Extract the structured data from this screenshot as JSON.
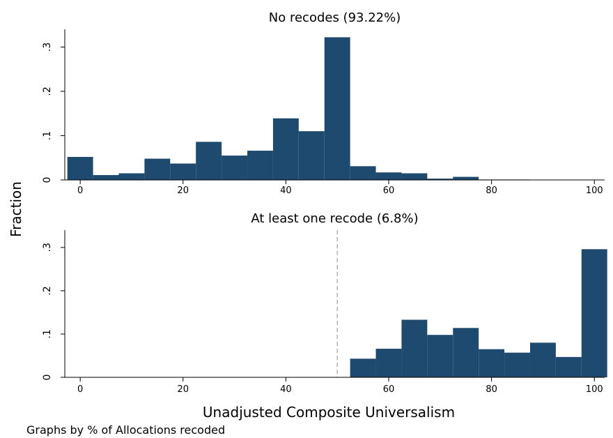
{
  "chart_data": {
    "type": "bar",
    "ylabel": "Fraction",
    "xlabel": "Unadjusted Composite Universalism",
    "note": "Graphs by % of Allocations recoded",
    "bar_color": "#1f4a70",
    "xlim": [
      -3,
      102
    ],
    "ylim": [
      0,
      0.34
    ],
    "xticks": [
      0,
      20,
      40,
      60,
      80,
      100
    ],
    "yticks": [
      {
        "value": 0,
        "label": "0"
      },
      {
        "value": 0.1,
        "label": ".1"
      },
      {
        "value": 0.2,
        "label": ".2"
      },
      {
        "value": 0.3,
        "label": ".3"
      }
    ],
    "panels": [
      {
        "title": "No recodes (93.22%)",
        "bins": [
          {
            "x0": -2.5,
            "x1": 2.5,
            "value": 0.052
          },
          {
            "x0": 2.5,
            "x1": 7.5,
            "value": 0.011
          },
          {
            "x0": 7.5,
            "x1": 12.5,
            "value": 0.015
          },
          {
            "x0": 12.5,
            "x1": 17.5,
            "value": 0.048
          },
          {
            "x0": 17.5,
            "x1": 22.5,
            "value": 0.037
          },
          {
            "x0": 22.5,
            "x1": 27.5,
            "value": 0.086
          },
          {
            "x0": 27.5,
            "x1": 32.5,
            "value": 0.055
          },
          {
            "x0": 32.5,
            "x1": 37.5,
            "value": 0.066
          },
          {
            "x0": 37.5,
            "x1": 42.5,
            "value": 0.139
          },
          {
            "x0": 42.5,
            "x1": 47.5,
            "value": 0.11
          },
          {
            "x0": 47.5,
            "x1": 52.5,
            "value": 0.322
          },
          {
            "x0": 52.5,
            "x1": 57.5,
            "value": 0.031
          },
          {
            "x0": 57.5,
            "x1": 62.5,
            "value": 0.017
          },
          {
            "x0": 62.5,
            "x1": 67.5,
            "value": 0.015
          },
          {
            "x0": 67.5,
            "x1": 72.5,
            "value": 0.003
          },
          {
            "x0": 72.5,
            "x1": 77.5,
            "value": 0.007
          },
          {
            "x0": 77.5,
            "x1": 82.5,
            "value": 0.001
          },
          {
            "x0": 82.5,
            "x1": 87.5,
            "value": 0.001
          }
        ]
      },
      {
        "title": "At least one recode (6.8%)",
        "reference_line_x": 50,
        "bins": [
          {
            "x0": 52.5,
            "x1": 57.5,
            "value": 0.043
          },
          {
            "x0": 57.5,
            "x1": 62.5,
            "value": 0.066
          },
          {
            "x0": 62.5,
            "x1": 67.5,
            "value": 0.133
          },
          {
            "x0": 67.5,
            "x1": 72.5,
            "value": 0.098
          },
          {
            "x0": 72.5,
            "x1": 77.5,
            "value": 0.114
          },
          {
            "x0": 77.5,
            "x1": 82.5,
            "value": 0.065
          },
          {
            "x0": 82.5,
            "x1": 87.5,
            "value": 0.057
          },
          {
            "x0": 87.5,
            "x1": 92.5,
            "value": 0.08
          },
          {
            "x0": 92.5,
            "x1": 97.5,
            "value": 0.047
          },
          {
            "x0": 97.5,
            "x1": 102.5,
            "value": 0.296
          }
        ]
      }
    ]
  }
}
